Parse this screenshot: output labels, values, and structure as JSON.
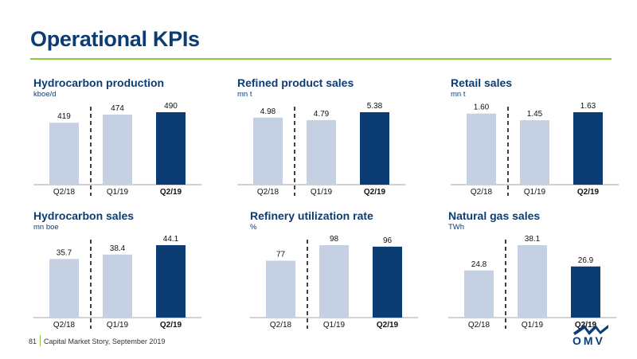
{
  "page": {
    "title": "Operational KPIs",
    "footer_page": "81",
    "footer_text": "Capital Market Story, September 2019",
    "logo_text": "OMV"
  },
  "colors": {
    "light_bar": "#c5d1e2",
    "dark_bar": "#0b3c73",
    "accent_rule": "#8dc63f",
    "text_blue": "#0b3c73"
  },
  "chart_data": [
    {
      "type": "bar",
      "title": "Hydrocarbon production",
      "unit": "kboe/d",
      "categories": [
        "Q2/18",
        "Q1/19",
        "Q2/19"
      ],
      "values": [
        419,
        474,
        490
      ],
      "labels": [
        "419",
        "474",
        "490"
      ],
      "ylim": [
        0,
        490
      ],
      "highlight_index": 2
    },
    {
      "type": "bar",
      "title": "Refined product sales",
      "unit": "mn t",
      "categories": [
        "Q2/18",
        "Q1/19",
        "Q2/19"
      ],
      "values": [
        4.98,
        4.79,
        5.38
      ],
      "labels": [
        "4.98",
        "4.79",
        "5.38"
      ],
      "ylim": [
        0,
        5.38
      ],
      "highlight_index": 2
    },
    {
      "type": "bar",
      "title": "Retail sales",
      "unit": "mn t",
      "categories": [
        "Q2/18",
        "Q1/19",
        "Q2/19"
      ],
      "values": [
        1.6,
        1.45,
        1.63
      ],
      "labels": [
        "1.60",
        "1.45",
        "1.63"
      ],
      "ylim": [
        0,
        1.63
      ],
      "highlight_index": 2
    },
    {
      "type": "bar",
      "title": "Hydrocarbon sales",
      "unit": "mn boe",
      "categories": [
        "Q2/18",
        "Q1/19",
        "Q2/19"
      ],
      "values": [
        35.7,
        38.4,
        44.1
      ],
      "labels": [
        "35.7",
        "38.4",
        "44.1"
      ],
      "ylim": [
        0,
        44.1
      ],
      "highlight_index": 2
    },
    {
      "type": "bar",
      "title": "Refinery utilization rate",
      "unit": "%",
      "categories": [
        "Q2/18",
        "Q1/19",
        "Q2/19"
      ],
      "values": [
        77,
        98,
        96
      ],
      "labels": [
        "77",
        "98",
        "96"
      ],
      "ylim": [
        0,
        98
      ],
      "highlight_index": 2
    },
    {
      "type": "bar",
      "title": "Natural gas sales",
      "unit": "TWh",
      "categories": [
        "Q2/18",
        "Q1/19",
        "Q2/19"
      ],
      "values": [
        24.8,
        38.1,
        26.9
      ],
      "labels": [
        "24.8",
        "38.1",
        "26.9"
      ],
      "ylim": [
        0,
        38.1
      ],
      "highlight_index": 2
    }
  ]
}
